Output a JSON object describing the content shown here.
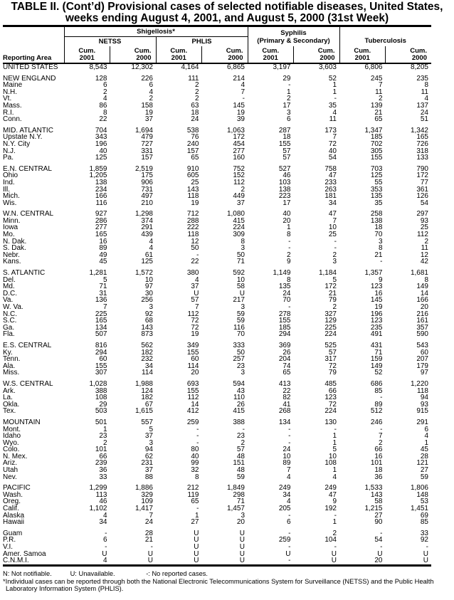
{
  "title_line1": "TABLE II. (Cont’d) Provisional cases of selected notifiable diseases, United States,",
  "title_line2": "weeks ending August 4, 2001, and August 5, 2000 (31st Week)",
  "header": {
    "reporting_area": "Reporting Area",
    "shigellosis": "Shigellosis*",
    "netss": "NETSS",
    "phlis": "PHLIS",
    "syphilis": "Syphilis",
    "syphilis_sub": "(Primary & Secondary)",
    "tuberculosis": "Tuberculosis",
    "cum": "Cum.",
    "years": [
      "2001",
      "2000",
      "2001",
      "2000",
      "2001",
      "2000",
      "2001",
      "2000"
    ]
  },
  "groups": [
    [
      [
        "UNITED STATES",
        "8,543",
        "12,302",
        "4,164",
        "6,865",
        "3,197",
        "3,603",
        "6,806",
        "8,205"
      ]
    ],
    [
      [
        "NEW ENGLAND",
        "128",
        "226",
        "111",
        "214",
        "29",
        "52",
        "245",
        "235"
      ],
      [
        "Maine",
        "6",
        "6",
        "2",
        "4",
        "-",
        "1",
        "7",
        "8"
      ],
      [
        "N.H.",
        "2",
        "4",
        "2",
        "7",
        "1",
        "1",
        "11",
        "11"
      ],
      [
        "Vt.",
        "4",
        "2",
        "2",
        "-",
        "2",
        "-",
        "2",
        "4"
      ],
      [
        "Mass.",
        "86",
        "158",
        "63",
        "145",
        "17",
        "35",
        "139",
        "137"
      ],
      [
        "R.I.",
        "8",
        "19",
        "18",
        "19",
        "3",
        "4",
        "21",
        "24"
      ],
      [
        "Conn.",
        "22",
        "37",
        "24",
        "39",
        "6",
        "11",
        "65",
        "51"
      ]
    ],
    [
      [
        "MID. ATLANTIC",
        "704",
        "1,694",
        "538",
        "1,063",
        "287",
        "173",
        "1,347",
        "1,342"
      ],
      [
        "Upstate N.Y.",
        "343",
        "479",
        "76",
        "172",
        "18",
        "7",
        "185",
        "165"
      ],
      [
        "N.Y. City",
        "196",
        "727",
        "240",
        "454",
        "155",
        "72",
        "702",
        "726"
      ],
      [
        "N.J.",
        "40",
        "331",
        "157",
        "277",
        "57",
        "40",
        "305",
        "318"
      ],
      [
        "Pa.",
        "125",
        "157",
        "65",
        "160",
        "57",
        "54",
        "155",
        "133"
      ]
    ],
    [
      [
        "E.N. CENTRAL",
        "1,859",
        "2,519",
        "910",
        "752",
        "527",
        "758",
        "703",
        "790"
      ],
      [
        "Ohio",
        "1,205",
        "175",
        "605",
        "152",
        "46",
        "47",
        "125",
        "172"
      ],
      [
        "Ind.",
        "138",
        "906",
        "25",
        "112",
        "103",
        "233",
        "55",
        "77"
      ],
      [
        "Ill.",
        "234",
        "731",
        "143",
        "2",
        "138",
        "263",
        "353",
        "361"
      ],
      [
        "Mich.",
        "166",
        "497",
        "118",
        "449",
        "223",
        "181",
        "135",
        "126"
      ],
      [
        "Wis.",
        "116",
        "210",
        "19",
        "37",
        "17",
        "34",
        "35",
        "54"
      ]
    ],
    [
      [
        "W.N. CENTRAL",
        "927",
        "1,298",
        "712",
        "1,080",
        "40",
        "47",
        "258",
        "297"
      ],
      [
        "Minn.",
        "286",
        "374",
        "288",
        "415",
        "20",
        "7",
        "138",
        "93"
      ],
      [
        "Iowa",
        "277",
        "291",
        "222",
        "224",
        "1",
        "10",
        "18",
        "25"
      ],
      [
        "Mo.",
        "165",
        "439",
        "118",
        "309",
        "8",
        "25",
        "70",
        "112"
      ],
      [
        "N. Dak.",
        "16",
        "4",
        "12",
        "8",
        "-",
        "-",
        "3",
        "2"
      ],
      [
        "S. Dak.",
        "89",
        "4",
        "50",
        "3",
        "-",
        "-",
        "8",
        "11"
      ],
      [
        "Nebr.",
        "49",
        "61",
        "-",
        "50",
        "2",
        "2",
        "21",
        "12"
      ],
      [
        "Kans.",
        "45",
        "125",
        "22",
        "71",
        "9",
        "3",
        "-",
        "42"
      ]
    ],
    [
      [
        "S. ATLANTIC",
        "1,281",
        "1,572",
        "380",
        "592",
        "1,149",
        "1,184",
        "1,357",
        "1,681"
      ],
      [
        "Del.",
        "5",
        "10",
        "4",
        "10",
        "8",
        "5",
        "9",
        "8"
      ],
      [
        "Md.",
        "71",
        "97",
        "37",
        "58",
        "135",
        "172",
        "123",
        "149"
      ],
      [
        "D.C.",
        "31",
        "30",
        "U",
        "U",
        "24",
        "21",
        "16",
        "14"
      ],
      [
        "Va.",
        "136",
        "256",
        "57",
        "217",
        "70",
        "79",
        "145",
        "166"
      ],
      [
        "W. Va.",
        "7",
        "3",
        "7",
        "3",
        "-",
        "2",
        "19",
        "20"
      ],
      [
        "N.C.",
        "225",
        "92",
        "112",
        "59",
        "278",
        "327",
        "196",
        "216"
      ],
      [
        "S.C.",
        "165",
        "68",
        "72",
        "59",
        "155",
        "129",
        "123",
        "161"
      ],
      [
        "Ga.",
        "134",
        "143",
        "72",
        "116",
        "185",
        "225",
        "235",
        "357"
      ],
      [
        "Fla.",
        "507",
        "873",
        "19",
        "70",
        "294",
        "224",
        "491",
        "590"
      ]
    ],
    [
      [
        "E.S. CENTRAL",
        "816",
        "562",
        "349",
        "333",
        "369",
        "525",
        "431",
        "543"
      ],
      [
        "Ky.",
        "294",
        "182",
        "155",
        "50",
        "26",
        "57",
        "71",
        "60"
      ],
      [
        "Tenn.",
        "60",
        "232",
        "60",
        "257",
        "204",
        "317",
        "159",
        "207"
      ],
      [
        "Ala.",
        "155",
        "34",
        "114",
        "23",
        "74",
        "72",
        "149",
        "179"
      ],
      [
        "Miss.",
        "307",
        "114",
        "20",
        "3",
        "65",
        "79",
        "52",
        "97"
      ]
    ],
    [
      [
        "W.S. CENTRAL",
        "1,028",
        "1,988",
        "693",
        "594",
        "413",
        "485",
        "686",
        "1,220"
      ],
      [
        "Ark.",
        "388",
        "124",
        "155",
        "43",
        "22",
        "66",
        "85",
        "118"
      ],
      [
        "La.",
        "108",
        "182",
        "112",
        "110",
        "82",
        "123",
        "-",
        "94"
      ],
      [
        "Okla.",
        "29",
        "67",
        "14",
        "26",
        "41",
        "72",
        "89",
        "93"
      ],
      [
        "Tex.",
        "503",
        "1,615",
        "412",
        "415",
        "268",
        "224",
        "512",
        "915"
      ]
    ],
    [
      [
        "MOUNTAIN",
        "501",
        "557",
        "259",
        "388",
        "134",
        "130",
        "246",
        "291"
      ],
      [
        "Mont.",
        "1",
        "5",
        "-",
        "-",
        "-",
        "-",
        "-",
        "6"
      ],
      [
        "Idaho",
        "23",
        "37",
        "-",
        "23",
        "-",
        "1",
        "7",
        "4"
      ],
      [
        "Wyo.",
        "2",
        "3",
        "-",
        "2",
        "-",
        "1",
        "2",
        "1"
      ],
      [
        "Colo.",
        "101",
        "94",
        "80",
        "57",
        "24",
        "5",
        "66",
        "45"
      ],
      [
        "N. Mex.",
        "66",
        "62",
        "40",
        "48",
        "10",
        "10",
        "16",
        "28"
      ],
      [
        "Ariz.",
        "239",
        "231",
        "99",
        "151",
        "89",
        "108",
        "101",
        "121"
      ],
      [
        "Utah",
        "36",
        "37",
        "32",
        "48",
        "7",
        "1",
        "18",
        "27"
      ],
      [
        "Nev.",
        "33",
        "88",
        "8",
        "59",
        "4",
        "4",
        "36",
        "59"
      ]
    ],
    [
      [
        "PACIFIC",
        "1,299",
        "1,886",
        "212",
        "1,849",
        "249",
        "249",
        "1,533",
        "1,806"
      ],
      [
        "Wash.",
        "113",
        "329",
        "119",
        "298",
        "34",
        "47",
        "143",
        "148"
      ],
      [
        "Oreg.",
        "46",
        "109",
        "65",
        "71",
        "4",
        "9",
        "58",
        "53"
      ],
      [
        "Calif.",
        "1,102",
        "1,417",
        "-",
        "1,457",
        "205",
        "192",
        "1,215",
        "1,451"
      ],
      [
        "Alaska",
        "4",
        "7",
        "1",
        "3",
        "-",
        "-",
        "27",
        "69"
      ],
      [
        "Hawaii",
        "34",
        "24",
        "27",
        "20",
        "6",
        "1",
        "90",
        "85"
      ]
    ],
    [
      [
        "Guam",
        "-",
        "28",
        "U",
        "U",
        "-",
        "2",
        "-",
        "33"
      ],
      [
        "P.R.",
        "6",
        "21",
        "U",
        "U",
        "259",
        "104",
        "54",
        "92"
      ],
      [
        "V.I.",
        "-",
        "-",
        "U",
        "U",
        "-",
        "-",
        "-",
        "-"
      ],
      [
        "Amer. Samoa",
        "U",
        "U",
        "U",
        "U",
        "U",
        "U",
        "U",
        "U"
      ],
      [
        "C.N.M.I.",
        "4",
        "U",
        "U",
        "U",
        "-",
        "U",
        "20",
        "U"
      ]
    ]
  ],
  "footer": {
    "n": "N: Not notifiable.",
    "u": "U: Unavailable.",
    "dash": "-: No reported cases.",
    "note": "*Individual cases can be reported through both the National Electronic Telecommunications System for Surveillance (NETSS) and the Public Health Laboratory Information System (PHLIS)."
  }
}
